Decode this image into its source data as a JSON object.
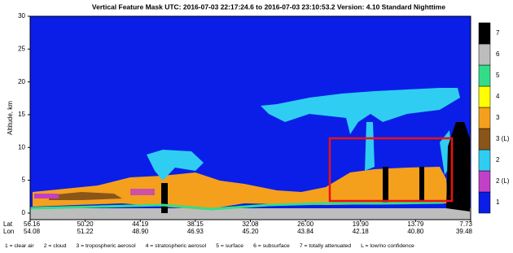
{
  "chart_data": {
    "type": "feature-mask",
    "title": "Vertical Feature Mask   UTC:  2016-07-03   22:17:24.6   to   2016-07-03   23:10:53.2    Version:  4.10  Standard Nighttime",
    "y_label": "Altitude, km",
    "ylim": [
      -1,
      30
    ],
    "yticks": [
      0,
      5,
      10,
      15,
      20,
      25,
      30
    ],
    "x_row_labels": [
      "Lat",
      "Lon"
    ],
    "lat": [
      "56.16",
      "50.20",
      "44.19",
      "38.15",
      "32.08",
      "26.00",
      "19.90",
      "13.79",
      "7.73"
    ],
    "lon": [
      "54.08",
      "51.22",
      "48.90",
      "46.93",
      "45.20",
      "43.84",
      "42.18",
      "40.80",
      "39.48"
    ],
    "colorbar": [
      {
        "label": "1",
        "color": "#0a1ee8"
      },
      {
        "label": "2 (L)",
        "color": "#c23fc8"
      },
      {
        "label": "2",
        "color": "#2fcdf2"
      },
      {
        "label": "3 (L)",
        "color": "#8a5518"
      },
      {
        "label": "3",
        "color": "#f5a01c"
      },
      {
        "label": "4",
        "color": "#ffff00"
      },
      {
        "label": "5",
        "color": "#33dd88"
      },
      {
        "label": "6",
        "color": "#bdbdbd"
      },
      {
        "label": "7",
        "color": "#000000"
      }
    ],
    "legend": [
      "1 = clear air",
      "2 = cloud",
      "3 = tropospheric aerosol",
      "4 = stratospheric aerosol",
      "5 = surface",
      "6 = subsurface",
      "7 = totally attenuated",
      "L = low/no confidence"
    ]
  }
}
